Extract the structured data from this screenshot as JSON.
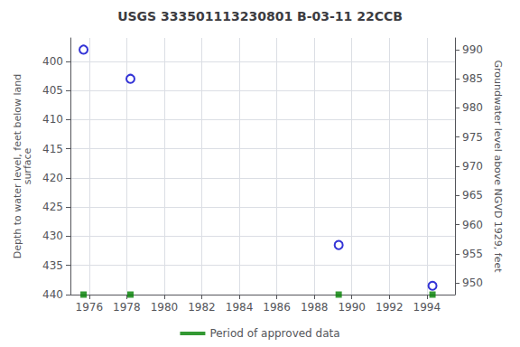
{
  "chart_data": {
    "type": "scatter",
    "title": "USGS 333501113230801 B-03-11 22CCB",
    "x": [
      1975.7,
      1978.2,
      1989.3,
      1994.3
    ],
    "series": [
      {
        "values": [
          398.0,
          403.0,
          431.5,
          438.5
        ],
        "color": "#0000cc",
        "marker": "open_circle"
      },
      {
        "name": "Period of approved data",
        "values": [
          440.0,
          440.0,
          440.0,
          440.0
        ],
        "color": "#008000",
        "marker": "square"
      }
    ],
    "xlim": [
      1975.0,
      1995.5
    ],
    "xticks": [
      1976,
      1978,
      1980,
      1982,
      1984,
      1986,
      1988,
      1990,
      1992,
      1994
    ],
    "ylim": [
      440.0,
      396.0
    ],
    "yticks": [
      400,
      405,
      410,
      415,
      420,
      425,
      430,
      435,
      440
    ],
    "y2lim": [
      948.0,
      992.0
    ],
    "y2ticks": [
      950,
      955,
      960,
      965,
      970,
      975,
      980,
      985,
      990
    ],
    "ylabel": "Depth to water level, feet below land\nsurface",
    "y2label": "Groundwater level above NGVD 1929, feet",
    "grid": true,
    "legend": "bottom"
  }
}
